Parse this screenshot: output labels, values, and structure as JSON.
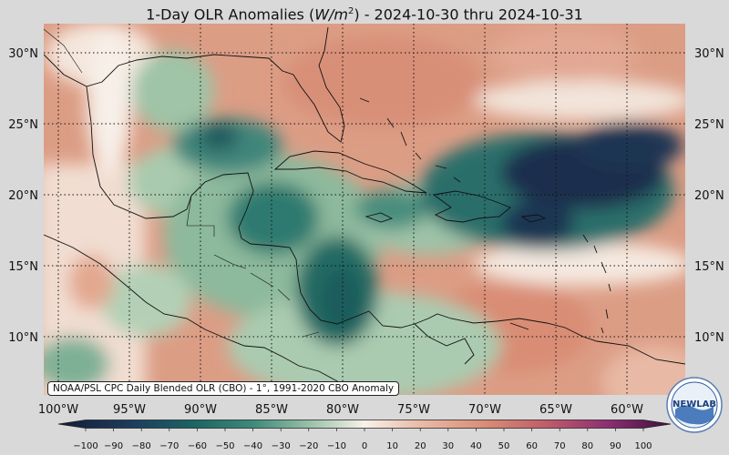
{
  "title": {
    "prefix": "1-Day OLR Anomalies (",
    "units_italic": "W/m",
    "units_sup": "2",
    "suffix": ") - 2024-10-30 thru 2024-10-31"
  },
  "map": {
    "lon_range": [
      -102,
      -57
    ],
    "lat_range": [
      6,
      32
    ],
    "lat_ticks": [
      {
        "value": 30,
        "label": "30°N"
      },
      {
        "value": 25,
        "label": "25°N"
      },
      {
        "value": 20,
        "label": "20°N"
      },
      {
        "value": 15,
        "label": "15°N"
      },
      {
        "value": 10,
        "label": "10°N"
      }
    ],
    "lon_ticks": [
      {
        "value": -100,
        "label": "100°W"
      },
      {
        "value": -95,
        "label": "95°W"
      },
      {
        "value": -90,
        "label": "90°W"
      },
      {
        "value": -85,
        "label": "85°W"
      },
      {
        "value": -80,
        "label": "80°W"
      },
      {
        "value": -75,
        "label": "75°W"
      },
      {
        "value": -70,
        "label": "70°W"
      },
      {
        "value": -65,
        "label": "65°W"
      },
      {
        "value": -60,
        "label": "60°W"
      }
    ],
    "gridlines": "dotted"
  },
  "colorbar": {
    "ticks": [
      -100,
      -90,
      -80,
      -70,
      -60,
      -50,
      -40,
      -30,
      -20,
      -10,
      0,
      10,
      20,
      30,
      40,
      50,
      60,
      70,
      80,
      90,
      100
    ],
    "labels": [
      "−100",
      "−90",
      "−80",
      "−70",
      "−60",
      "−50",
      "−40",
      "−30",
      "−20",
      "−10",
      "0",
      "10",
      "20",
      "30",
      "40",
      "50",
      "60",
      "70",
      "80",
      "90",
      "100"
    ]
  },
  "source_note": "NOAA/PSL CPC Daily Blended OLR (CBO) - 1°, 1991-2020 CBO Anomaly",
  "logo": {
    "text": "NEWLAB",
    "icon": "noaa-newlab-logo"
  },
  "colors": {
    "strong_negative": "#1c2b4a",
    "negative": "#1f6b66",
    "weak_negative": "#9cc3a7",
    "neutral": "#f6ece4",
    "positive": "#e29b82",
    "strong_positive": "#8a2d6e"
  }
}
